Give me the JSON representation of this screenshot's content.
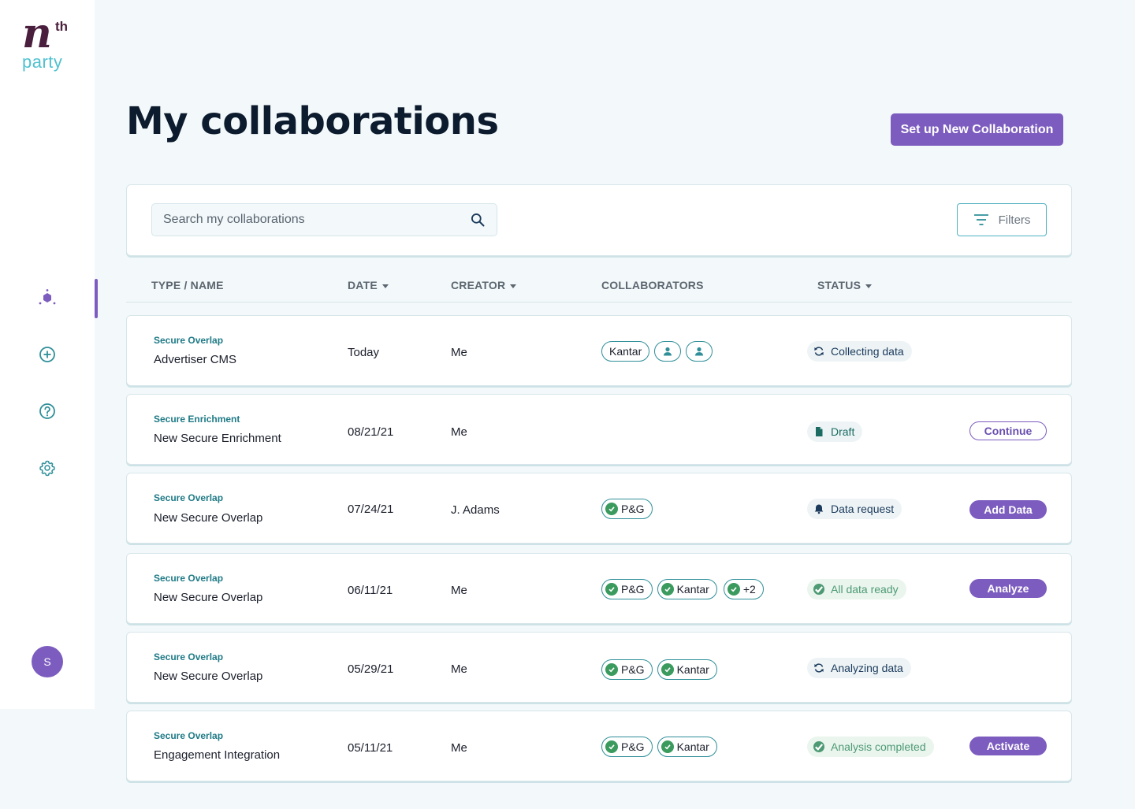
{
  "brand": {
    "logo_main": "n",
    "logo_sup": "th",
    "logo_sub": "party",
    "accent": "#7c5cbf",
    "teal": "#4fc1cf"
  },
  "sidebar": {
    "items": [
      {
        "icon": "collaborations-icon",
        "active": true
      },
      {
        "icon": "add-circle-icon",
        "active": false
      },
      {
        "icon": "help-circle-icon",
        "active": false
      },
      {
        "icon": "gear-icon",
        "active": false
      }
    ],
    "avatar_initial": "S"
  },
  "header": {
    "title": "My collaborations",
    "primary_action": "Set up New Collaboration"
  },
  "search": {
    "placeholder": "Search my collaborations",
    "filters_label": "Filters"
  },
  "table": {
    "columns": {
      "type_name": "TYPE / NAME",
      "date": "DATE",
      "creator": "CREATOR",
      "collaborators": "COLLABORATORS",
      "status": "STATUS"
    },
    "rows": [
      {
        "type": "Secure Overlap",
        "name": "Advertiser CMS",
        "date": "Today",
        "creator": "Me",
        "status": "Collecting data",
        "action": ""
      },
      {
        "type": "Secure Enrichment",
        "name": "New Secure Enrichment",
        "date": "08/21/21",
        "creator": "Me",
        "status": "Draft",
        "action": "Continue"
      },
      {
        "type": "Secure Overlap",
        "name": "New Secure Overlap",
        "date": "07/24/21",
        "creator": "J. Adams",
        "status": "Data request",
        "action": "Add Data"
      },
      {
        "type": "Secure Overlap",
        "name": "New Secure Overlap",
        "date": "06/11/21",
        "creator": "Me",
        "status": "All data ready",
        "action": "Analyze"
      },
      {
        "type": "Secure Overlap",
        "name": "New Secure Overlap",
        "date": "05/29/21",
        "creator": "Me",
        "status": "Analyzing data",
        "action": ""
      },
      {
        "type": "Secure Overlap",
        "name": "Engagement Integration",
        "date": "05/11/21",
        "creator": "Me",
        "status": "Analysis completed",
        "action": "Activate"
      }
    ],
    "collaborators": {
      "r0": [
        "Kantar"
      ],
      "r2": [
        "P&G"
      ],
      "r3": [
        "P&G",
        "Kantar",
        "+2"
      ],
      "r4": [
        "P&G",
        "Kantar"
      ],
      "r5": [
        "P&G",
        "Kantar"
      ]
    }
  }
}
